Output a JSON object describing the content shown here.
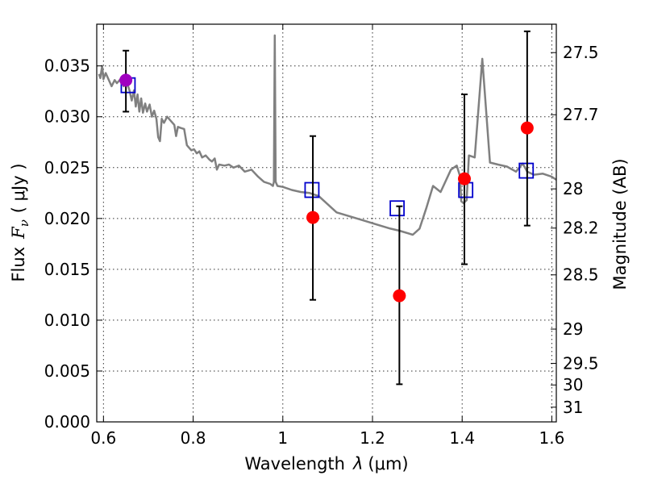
{
  "chart_data": {
    "type": "scatter",
    "xlabel_prefix": "Wavelength",
    "xlabel_sym": "λ",
    "xlabel_units": "(μm)",
    "ylabel_prefix": "Flux",
    "ylabel_sym": "F",
    "ylabel_sub": "ν",
    "ylabel_units": "( μJy )",
    "y2label": "Magnitude (AB)",
    "xlim": [
      0.585,
      1.61
    ],
    "ylim": [
      0.0,
      0.0391
    ],
    "x_ticks": [
      {
        "value": 0.6,
        "label": "0.6"
      },
      {
        "value": 0.8,
        "label": "0.8"
      },
      {
        "value": 1.0,
        "label": "1"
      },
      {
        "value": 1.2,
        "label": "1.2"
      },
      {
        "value": 1.4,
        "label": "1.4"
      },
      {
        "value": 1.6,
        "label": "1.6"
      }
    ],
    "y_ticks": [
      {
        "value": 0.0,
        "label": "0.000"
      },
      {
        "value": 0.005,
        "label": "0.005"
      },
      {
        "value": 0.01,
        "label": "0.010"
      },
      {
        "value": 0.015,
        "label": "0.015"
      },
      {
        "value": 0.02,
        "label": "0.020"
      },
      {
        "value": 0.025,
        "label": "0.025"
      },
      {
        "value": 0.03,
        "label": "0.030"
      },
      {
        "value": 0.035,
        "label": "0.035"
      }
    ],
    "y2_ticks": [
      {
        "value": 27.5,
        "label": "27.5"
      },
      {
        "value": 27.7,
        "label": "27.7"
      },
      {
        "value": 28.0,
        "label": "28"
      },
      {
        "value": 28.2,
        "label": "28.2"
      },
      {
        "value": 28.5,
        "label": "28.5"
      },
      {
        "value": 29.0,
        "label": "29"
      },
      {
        "value": 29.5,
        "label": "29.5"
      },
      {
        "value": 30.0,
        "label": "30"
      },
      {
        "value": 31.0,
        "label": "31"
      }
    ],
    "grid": true,
    "colors": {
      "sed_line": "#808080",
      "observed": "#ff0000",
      "highlight": "#a000c0",
      "model_box": "#0000cc",
      "errorbar": "#000000"
    },
    "sed_model": [
      [
        0.59,
        0.0342
      ],
      [
        0.593,
        0.0338
      ],
      [
        0.597,
        0.035
      ],
      [
        0.6,
        0.0337
      ],
      [
        0.605,
        0.0343
      ],
      [
        0.612,
        0.0336
      ],
      [
        0.618,
        0.033
      ],
      [
        0.625,
        0.0336
      ],
      [
        0.63,
        0.0333
      ],
      [
        0.638,
        0.0337
      ],
      [
        0.645,
        0.033
      ],
      [
        0.652,
        0.0334
      ],
      [
        0.658,
        0.0326
      ],
      [
        0.663,
        0.0316
      ],
      [
        0.668,
        0.0326
      ],
      [
        0.672,
        0.031
      ],
      [
        0.676,
        0.0322
      ],
      [
        0.68,
        0.0305
      ],
      [
        0.684,
        0.0318
      ],
      [
        0.688,
        0.0304
      ],
      [
        0.693,
        0.0313
      ],
      [
        0.697,
        0.0305
      ],
      [
        0.703,
        0.0312
      ],
      [
        0.708,
        0.03
      ],
      [
        0.713,
        0.0306
      ],
      [
        0.718,
        0.0298
      ],
      [
        0.722,
        0.028
      ],
      [
        0.726,
        0.0276
      ],
      [
        0.73,
        0.0298
      ],
      [
        0.735,
        0.0294
      ],
      [
        0.742,
        0.03
      ],
      [
        0.75,
        0.0296
      ],
      [
        0.758,
        0.0292
      ],
      [
        0.762,
        0.0281
      ],
      [
        0.766,
        0.029
      ],
      [
        0.772,
        0.0289
      ],
      [
        0.78,
        0.0288
      ],
      [
        0.786,
        0.0272
      ],
      [
        0.79,
        0.027
      ],
      [
        0.796,
        0.0267
      ],
      [
        0.802,
        0.0268
      ],
      [
        0.808,
        0.0264
      ],
      [
        0.814,
        0.0266
      ],
      [
        0.82,
        0.026
      ],
      [
        0.828,
        0.0262
      ],
      [
        0.836,
        0.0258
      ],
      [
        0.842,
        0.0256
      ],
      [
        0.848,
        0.0259
      ],
      [
        0.853,
        0.0248
      ],
      [
        0.858,
        0.0253
      ],
      [
        0.87,
        0.0252
      ],
      [
        0.88,
        0.0253
      ],
      [
        0.89,
        0.025
      ],
      [
        0.902,
        0.0252
      ],
      [
        0.915,
        0.0246
      ],
      [
        0.93,
        0.0248
      ],
      [
        0.945,
        0.0241
      ],
      [
        0.958,
        0.0236
      ],
      [
        0.972,
        0.0234
      ],
      [
        0.978,
        0.0232
      ],
      [
        0.98,
        0.0236
      ],
      [
        0.982,
        0.038
      ],
      [
        0.984,
        0.0236
      ],
      [
        0.988,
        0.0232
      ],
      [
        1.0,
        0.0231
      ],
      [
        1.02,
        0.0228
      ],
      [
        1.04,
        0.0226
      ],
      [
        1.06,
        0.0225
      ],
      [
        1.08,
        0.0222
      ],
      [
        1.1,
        0.0214
      ],
      [
        1.12,
        0.0206
      ],
      [
        1.15,
        0.0202
      ],
      [
        1.18,
        0.0198
      ],
      [
        1.21,
        0.0194
      ],
      [
        1.24,
        0.019
      ],
      [
        1.26,
        0.0188
      ],
      [
        1.29,
        0.0184
      ],
      [
        1.305,
        0.019
      ],
      [
        1.32,
        0.021
      ],
      [
        1.335,
        0.0232
      ],
      [
        1.352,
        0.0226
      ],
      [
        1.375,
        0.0248
      ],
      [
        1.388,
        0.0252
      ],
      [
        1.395,
        0.0242
      ],
      [
        1.398,
        0.0217
      ],
      [
        1.403,
        0.0215
      ],
      [
        1.41,
        0.0218
      ],
      [
        1.415,
        0.0262
      ],
      [
        1.428,
        0.026
      ],
      [
        1.445,
        0.0357
      ],
      [
        1.462,
        0.0255
      ],
      [
        1.48,
        0.0253
      ],
      [
        1.5,
        0.0251
      ],
      [
        1.52,
        0.0246
      ],
      [
        1.535,
        0.0254
      ],
      [
        1.545,
        0.0246
      ],
      [
        1.56,
        0.0243
      ],
      [
        1.58,
        0.0244
      ],
      [
        1.6,
        0.0241
      ],
      [
        1.61,
        0.0238
      ]
    ],
    "observed": [
      {
        "x": 0.65,
        "y": 0.0336,
        "err_lo": 0.0305,
        "err_hi": 0.0365,
        "highlight": true
      },
      {
        "x": 1.067,
        "y": 0.0201,
        "err_lo": 0.012,
        "err_hi": 0.0281
      },
      {
        "x": 1.26,
        "y": 0.0124,
        "err_lo": 0.0037,
        "err_hi": 0.0212
      },
      {
        "x": 1.405,
        "y": 0.0239,
        "err_lo": 0.0155,
        "err_hi": 0.0322
      },
      {
        "x": 1.545,
        "y": 0.0289,
        "err_lo": 0.0193,
        "err_hi": 0.0384
      }
    ],
    "model_photometry": [
      {
        "x": 0.655,
        "y": 0.0331
      },
      {
        "x": 1.065,
        "y": 0.0228
      },
      {
        "x": 1.255,
        "y": 0.021
      },
      {
        "x": 1.408,
        "y": 0.0228
      },
      {
        "x": 1.543,
        "y": 0.0247
      }
    ]
  }
}
